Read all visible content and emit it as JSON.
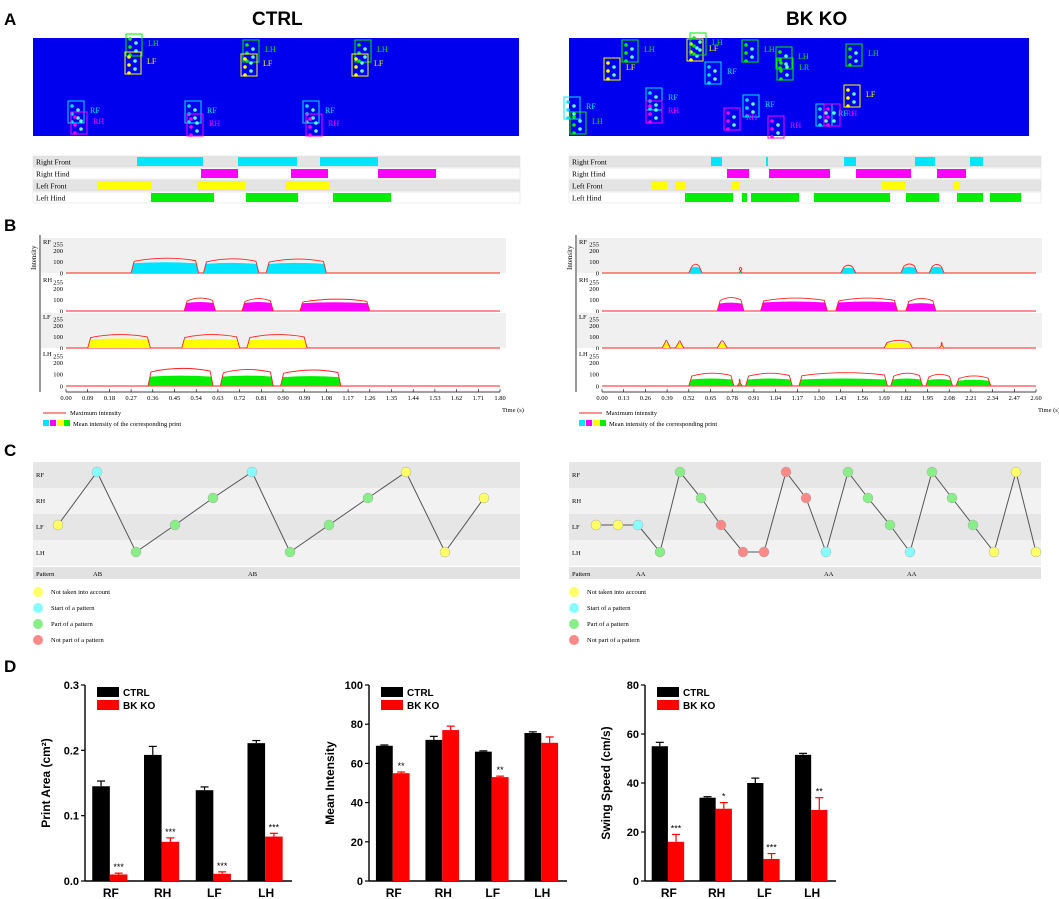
{
  "panel_letters": [
    "A",
    "B",
    "C",
    "D"
  ],
  "group_titles": {
    "left": "CTRL",
    "right": "BK KO"
  },
  "colors": {
    "rf": "#00e5ff",
    "rh": "#ff00ff",
    "lf": "#ffff00",
    "lh": "#00ee00",
    "max": "#ff2222",
    "scan_bg": "#0000ee"
  },
  "panelA": {
    "row_labels": [
      "Right Front",
      "Right Hind",
      "Left Front",
      "Left Hind"
    ],
    "left": {
      "print_labels": [
        {
          "t": "LH",
          "x": 148,
          "y": 46,
          "c": "lh"
        },
        {
          "t": "LF",
          "x": 147,
          "y": 64,
          "c": "lf"
        },
        {
          "t": "LH",
          "x": 265,
          "y": 52,
          "c": "lh"
        },
        {
          "t": "LF",
          "x": 263,
          "y": 66,
          "c": "lf"
        },
        {
          "t": "LH",
          "x": 377,
          "y": 52,
          "c": "lh"
        },
        {
          "t": "LF",
          "x": 374,
          "y": 66,
          "c": "lf"
        },
        {
          "t": "RF",
          "x": 90,
          "y": 113,
          "c": "rf"
        },
        {
          "t": "RH",
          "x": 93,
          "y": 124,
          "c": "rh"
        },
        {
          "t": "RF",
          "x": 207,
          "y": 113,
          "c": "rf"
        },
        {
          "t": "RH",
          "x": 209,
          "y": 126,
          "c": "rh"
        },
        {
          "t": "RF",
          "x": 325,
          "y": 113,
          "c": "rf"
        },
        {
          "t": "RH",
          "x": 328,
          "y": 126,
          "c": "rh"
        }
      ],
      "bars": {
        "rf": [
          [
            137,
            203
          ],
          [
            238,
            297
          ],
          [
            320,
            378
          ]
        ],
        "rh": [
          [
            201,
            238
          ],
          [
            291,
            328
          ],
          [
            378,
            436
          ]
        ],
        "lf": [
          [
            98,
            151
          ],
          [
            198,
            245
          ],
          [
            285,
            330
          ]
        ],
        "lh": [
          [
            151,
            214
          ],
          [
            246,
            298
          ],
          [
            333,
            391
          ]
        ]
      }
    },
    "right": {
      "print_labels": [
        {
          "t": "LH",
          "x": 644,
          "y": 52,
          "c": "lh"
        },
        {
          "t": "LF",
          "x": 709,
          "y": 51,
          "c": "lf"
        },
        {
          "t": "LH",
          "x": 712,
          "y": 45,
          "c": "lh"
        },
        {
          "t": "LH",
          "x": 764,
          "y": 52,
          "c": "lh"
        },
        {
          "t": "LH",
          "x": 798,
          "y": 59,
          "c": "lh"
        },
        {
          "t": "LR",
          "x": 799,
          "y": 70,
          "c": "lh"
        },
        {
          "t": "LH",
          "x": 868,
          "y": 56,
          "c": "lh"
        },
        {
          "t": "LF",
          "x": 626,
          "y": 70,
          "c": "lf"
        },
        {
          "t": "RF",
          "x": 727,
          "y": 74,
          "c": "rf"
        },
        {
          "t": "RF",
          "x": 668,
          "y": 100,
          "c": "rf"
        },
        {
          "t": "RH",
          "x": 668,
          "y": 113,
          "c": "rh"
        },
        {
          "t": "RF",
          "x": 765,
          "y": 107,
          "c": "rf"
        },
        {
          "t": "RH",
          "x": 746,
          "y": 120,
          "c": "rh"
        },
        {
          "t": "RH",
          "x": 790,
          "y": 128,
          "c": "rh"
        },
        {
          "t": "RF",
          "x": 838,
          "y": 116,
          "c": "rf"
        },
        {
          "t": "RH",
          "x": 846,
          "y": 116,
          "c": "rh"
        },
        {
          "t": "LF",
          "x": 866,
          "y": 97,
          "c": "lf"
        },
        {
          "t": "RF",
          "x": 586,
          "y": 109,
          "c": "rf"
        },
        {
          "t": "LH",
          "x": 592,
          "y": 124,
          "c": "lh"
        }
      ],
      "bars": {
        "rf": [
          [
            711,
            722
          ],
          [
            766,
            768
          ],
          [
            844,
            856
          ],
          [
            915,
            935
          ],
          [
            970,
            983
          ]
        ],
        "rh": [
          [
            727,
            749
          ],
          [
            769,
            830
          ],
          [
            856,
            911
          ],
          [
            937,
            966
          ]
        ],
        "lf": [
          [
            652,
            667
          ],
          [
            675,
            686
          ],
          [
            731,
            740
          ],
          [
            882,
            905
          ],
          [
            953,
            960
          ]
        ],
        "lh": [
          [
            685,
            733
          ],
          [
            742,
            747
          ],
          [
            751,
            799
          ],
          [
            814,
            890
          ],
          [
            906,
            939
          ],
          [
            957,
            983
          ],
          [
            990,
            1021
          ]
        ]
      }
    }
  },
  "panelB": {
    "ylabel": "Intensity",
    "row_labels": [
      "RF",
      "RH",
      "LF",
      "LH"
    ],
    "ticks": [
      "255",
      "200",
      "100",
      "0"
    ],
    "legend_max": "Maximum intensity",
    "legend_mean": "Mean intensity of the corresponding print",
    "time_label": "Time (s)",
    "left_x_ticks": [
      "0.00",
      "0.09",
      "0.18",
      "0.27",
      "0.36",
      "0.45",
      "0.54",
      "0.63",
      "0.72",
      "0.81",
      "0.90",
      "0.99",
      "1.08",
      "1.17",
      "1.26",
      "1.35",
      "1.44",
      "1.53",
      "1.62",
      "1.71",
      "1.80"
    ],
    "right_x_ticks": [
      "0.00",
      "0.13",
      "0.26",
      "0.39",
      "0.52",
      "0.65",
      "0.78",
      "0.91",
      "1.04",
      "1.17",
      "1.30",
      "1.43",
      "1.56",
      "1.69",
      "1.82",
      "1.95",
      "2.08",
      "2.21",
      "2.34",
      "2.47",
      "2.60"
    ],
    "left_traces": {
      "rf": [
        [
          0.27,
          0.55,
          128,
          86
        ],
        [
          0.57,
          0.8,
          122,
          80
        ],
        [
          0.83,
          1.08,
          120,
          80
        ]
      ],
      "rh": [
        [
          0.49,
          0.62,
          110,
          70
        ],
        [
          0.73,
          0.86,
          105,
          70
        ],
        [
          0.97,
          1.26,
          100,
          68
        ]
      ],
      "lf": [
        [
          0.09,
          0.35,
          115,
          75
        ],
        [
          0.48,
          0.72,
          115,
          70
        ],
        [
          0.75,
          1.0,
          115,
          68
        ]
      ],
      "lh": [
        [
          0.34,
          0.61,
          150,
          80
        ],
        [
          0.64,
          0.86,
          140,
          80
        ],
        [
          0.89,
          1.14,
          135,
          75
        ]
      ]
    },
    "right_traces": {
      "rf": [
        [
          0.52,
          0.6,
          70,
          45
        ],
        [
          0.82,
          0.84,
          40,
          20
        ],
        [
          1.43,
          1.52,
          60,
          38
        ],
        [
          1.79,
          1.89,
          72,
          45
        ],
        [
          1.96,
          2.05,
          68,
          45
        ]
      ],
      "rh": [
        [
          0.69,
          0.85,
          115,
          65
        ],
        [
          0.95,
          1.35,
          110,
          75
        ],
        [
          1.4,
          1.77,
          110,
          75
        ],
        [
          1.82,
          2.0,
          105,
          60
        ]
      ],
      "lf": [
        [
          0.36,
          0.41,
          60,
          40
        ],
        [
          0.44,
          0.49,
          55,
          35
        ],
        [
          0.69,
          0.75,
          55,
          32
        ],
        [
          1.69,
          1.86,
          60,
          40
        ],
        [
          2.02,
          2.05,
          40,
          20
        ]
      ],
      "lh": [
        [
          0.52,
          0.79,
          105,
          55
        ],
        [
          0.81,
          0.84,
          50,
          20
        ],
        [
          0.86,
          1.14,
          105,
          55
        ],
        [
          1.18,
          1.71,
          110,
          55
        ],
        [
          1.73,
          1.92,
          105,
          55
        ],
        [
          1.94,
          2.1,
          95,
          50
        ],
        [
          2.12,
          2.33,
          80,
          45
        ]
      ]
    }
  },
  "panelC": {
    "row_labels": [
      "RF",
      "RH",
      "LF",
      "LH"
    ],
    "pattern_label": "Pattern",
    "left_patterns": [
      {
        "t": "AB",
        "x": 93
      },
      {
        "t": "AB",
        "x": 248
      }
    ],
    "right_patterns": [
      {
        "t": "AA",
        "x": 636
      },
      {
        "t": "AA",
        "x": 824
      },
      {
        "t": "AA",
        "x": 907
      }
    ],
    "left_nodes": [
      [
        58,
        "lf",
        "y"
      ],
      [
        97,
        "rf",
        "c"
      ],
      [
        136,
        "lh",
        "g"
      ],
      [
        175,
        "lf",
        "g"
      ],
      [
        213,
        "rh",
        "g"
      ],
      [
        252,
        "rf",
        "c"
      ],
      [
        290,
        "lh",
        "g"
      ],
      [
        329,
        "lf",
        "g"
      ],
      [
        368,
        "rh",
        "g"
      ],
      [
        406,
        "rf",
        "y"
      ],
      [
        445,
        "lh",
        "y"
      ],
      [
        484,
        "rh",
        "y"
      ]
    ],
    "right_nodes": [
      [
        596,
        "lf",
        "y"
      ],
      [
        618,
        "lf",
        "y"
      ],
      [
        638,
        "lf",
        "c"
      ],
      [
        660,
        "lh",
        "g"
      ],
      [
        680,
        "rf",
        "g"
      ],
      [
        701,
        "rh",
        "g"
      ],
      [
        721,
        "lf",
        "r"
      ],
      [
        743,
        "lh",
        "r"
      ],
      [
        764,
        "lh",
        "r"
      ],
      [
        786,
        "rf",
        "r"
      ],
      [
        806,
        "rh",
        "r"
      ],
      [
        826,
        "lh",
        "c"
      ],
      [
        848,
        "rf",
        "g"
      ],
      [
        868,
        "rh",
        "g"
      ],
      [
        890,
        "lf",
        "g"
      ],
      [
        910,
        "lh",
        "c"
      ],
      [
        932,
        "rf",
        "g"
      ],
      [
        952,
        "rh",
        "g"
      ],
      [
        973,
        "lf",
        "g"
      ],
      [
        994,
        "lh",
        "y"
      ],
      [
        1016,
        "rf",
        "y"
      ],
      [
        1036,
        "lh",
        "y"
      ]
    ],
    "legend": [
      "Not taken into account",
      "Start of a pattern",
      "Part of a pattern",
      "Not part of a pattern"
    ]
  },
  "chart_data": [
    {
      "type": "bar",
      "categories": [
        "RF",
        "RH",
        "LF",
        "LH"
      ],
      "series": [
        {
          "name": "CTRL",
          "values": [
            0.145,
            0.193,
            0.139,
            0.211
          ],
          "errors": [
            0.008,
            0.013,
            0.005,
            0.004
          ]
        },
        {
          "name": "BK KO",
          "values": [
            0.01,
            0.06,
            0.011,
            0.068
          ],
          "errors": [
            0.002,
            0.006,
            0.003,
            0.005
          ]
        }
      ],
      "significance": [
        "***",
        "***",
        "***",
        "***"
      ],
      "ylabel": "Print Area (cm²)",
      "ylim": [
        0,
        0.3
      ],
      "yticks": [
        "0.0",
        "0.1",
        "0.2",
        "0.3"
      ]
    },
    {
      "type": "bar",
      "categories": [
        "RF",
        "RH",
        "LF",
        "LH"
      ],
      "series": [
        {
          "name": "CTRL",
          "values": [
            69,
            72,
            66,
            75.5
          ],
          "errors": [
            0.4,
            1.8,
            0.4,
            0.6
          ]
        },
        {
          "name": "BK KO",
          "values": [
            55,
            77,
            53,
            70.5
          ],
          "errors": [
            0.6,
            2.0,
            0.5,
            3.0
          ]
        }
      ],
      "significance": [
        "**",
        "",
        "**",
        ""
      ],
      "ylabel": "Mean Intensity",
      "ylim": [
        0,
        100
      ],
      "yticks": [
        "0",
        "20",
        "40",
        "60",
        "80",
        "100"
      ]
    },
    {
      "type": "bar",
      "categories": [
        "RF",
        "RH",
        "LF",
        "LH"
      ],
      "series": [
        {
          "name": "CTRL",
          "values": [
            55,
            34,
            40,
            51.5
          ],
          "errors": [
            1.6,
            0.4,
            2.0,
            0.6
          ]
        },
        {
          "name": "BK KO",
          "values": [
            16,
            29.5,
            9,
            29
          ],
          "errors": [
            3.0,
            2.5,
            2.2,
            5.0
          ]
        }
      ],
      "significance": [
        "***",
        "*",
        "***",
        "**"
      ],
      "ylabel": "Swing Speed (cm/s)",
      "ylim": [
        0,
        80
      ],
      "yticks": [
        "0",
        "20",
        "40",
        "60",
        "80"
      ]
    }
  ]
}
